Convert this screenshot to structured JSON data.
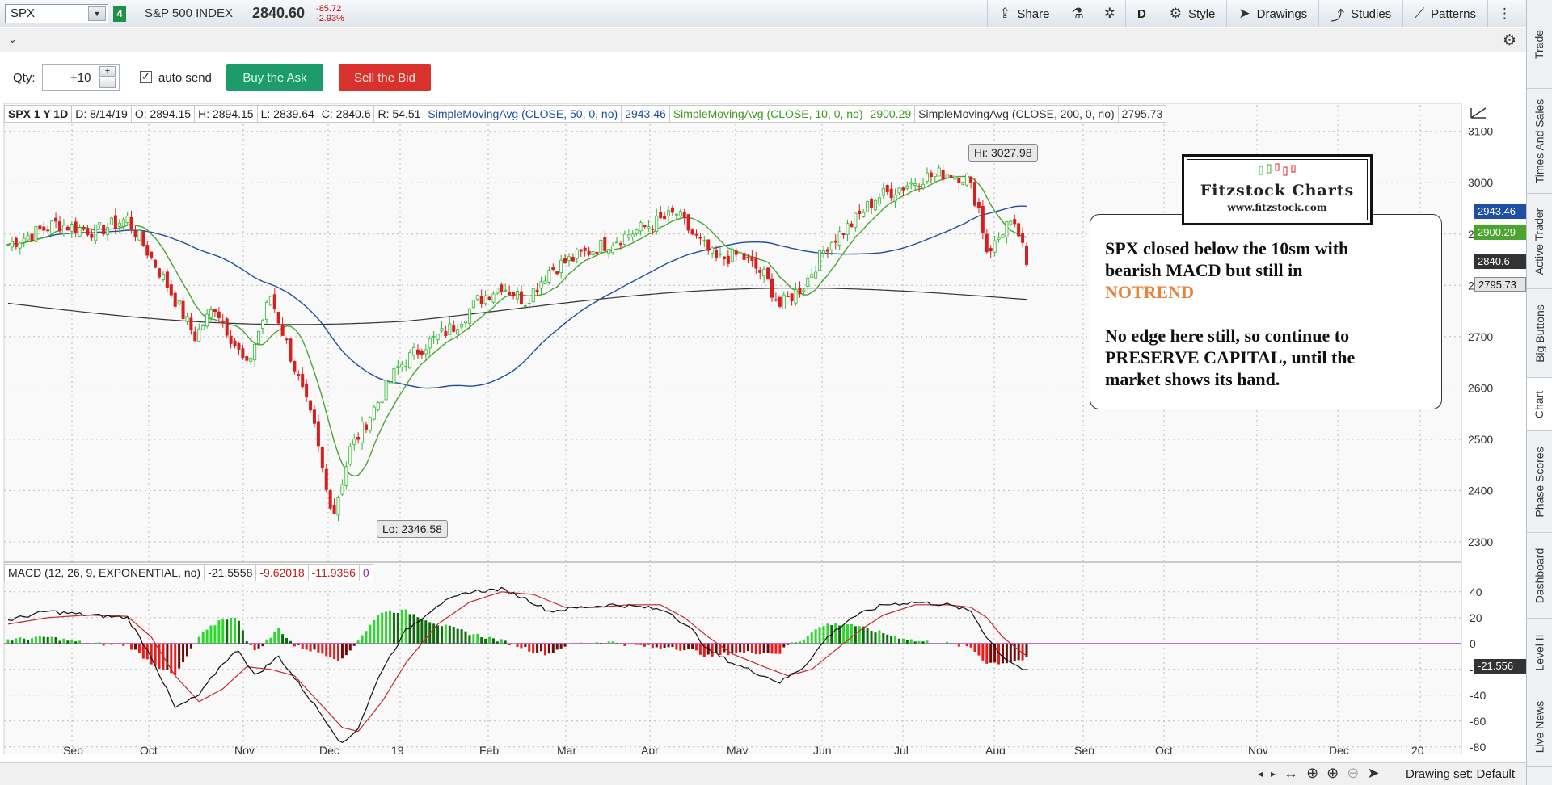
{
  "toolbar": {
    "symbol": "SPX",
    "link_badge": "4",
    "description": "S&P 500 INDEX",
    "last": "2840.60",
    "net_change": "-85.72",
    "pct_change": "-2.93%",
    "share": "Share",
    "aggregation": "D",
    "style": "Style",
    "drawings": "Drawings",
    "studies": "Studies",
    "patterns": "Patterns"
  },
  "trade": {
    "qty_label": "Qty:",
    "qty_value": "+10",
    "auto_send": "auto send",
    "buy": "Buy the Ask",
    "sell": "Sell the Bid"
  },
  "price_header": {
    "symbol": "SPX 1 Y 1D",
    "date": "D: 8/14/19",
    "open": "O: 2894.15",
    "high": "H: 2894.15",
    "low": "L: 2839.64",
    "close": "C: 2840.6",
    "range": "R: 54.51",
    "sma50_label": "SimpleMovingAvg (CLOSE, 50, 0, no)",
    "sma50_value": "2943.46",
    "sma10_label": "SimpleMovingAvg (CLOSE, 10, 0, no)",
    "sma10_value": "2900.29",
    "sma200_label": "SimpleMovingAvg (CLOSE, 200, 0, no)",
    "sma200_value": "2795.73"
  },
  "macd_header": {
    "label": "MACD (12, 26, 9, EXPONENTIAL, no)",
    "value": "-21.5558",
    "avg": "-9.62018",
    "diff": "-11.9356",
    "zero": "0"
  },
  "hi_label": "Hi: 3027.98",
  "lo_label": "Lo: 2346.58",
  "axis_badges": {
    "sma50": "2943.46",
    "sma10": "2900.29",
    "last": "2840.6",
    "sma200": "2795.73",
    "macd": "-21.556"
  },
  "price_axis": [
    "3100",
    "3000",
    "2900",
    "2800",
    "2700",
    "2600",
    "2500",
    "2400",
    "2300"
  ],
  "macd_axis": [
    "40",
    "20",
    "0",
    "-20",
    "-40",
    "-60",
    "-80"
  ],
  "time_axis": [
    "Sep",
    "Oct",
    "Nov",
    "Dec",
    "19",
    "Feb",
    "Mar",
    "Apr",
    "May",
    "Jun",
    "Jul",
    "Aug",
    "Sep",
    "Oct",
    "Nov",
    "Dec",
    "20"
  ],
  "annotation": {
    "brand": "Fitzstock Charts",
    "url": "www.fitzstock.com",
    "line1": "SPX closed below the 10sm with",
    "line2": "bearish MACD but still in",
    "line3": "NOTREND",
    "line4": "No edge here still, so continue to",
    "line5": "PRESERVE CAPITAL, until the",
    "line6": "market shows its hand."
  },
  "side_tabs": [
    "Trade",
    "Times And Sales",
    "Active Trader",
    "Big Buttons",
    "Chart",
    "Phase Scores",
    "Dashboard",
    "Level II",
    "Live News"
  ],
  "bottom": {
    "drawing_set": "Drawing set: Default"
  },
  "colors": {
    "up": "#2fb82f",
    "down": "#d81e1e",
    "sma50": "#1f4fa3",
    "sma10": "#4aa52e",
    "sma200": "#333333",
    "macd_line": "#111111",
    "macd_avg": "#c0282e",
    "zero_line": "#b040d0"
  },
  "chart_data": {
    "type": "candlestick",
    "price_ylim": [
      2270,
      3120
    ],
    "macd_ylim": [
      -82,
      48
    ],
    "anchors_close": [
      [
        0,
        2880
      ],
      [
        12,
        2920
      ],
      [
        22,
        2905
      ],
      [
        30,
        2930
      ],
      [
        34,
        2880
      ],
      [
        40,
        2800
      ],
      [
        47,
        2700
      ],
      [
        52,
        2760
      ],
      [
        60,
        2640
      ],
      [
        66,
        2780
      ],
      [
        72,
        2640
      ],
      [
        77,
        2520
      ],
      [
        80,
        2400
      ],
      [
        82,
        2360
      ],
      [
        86,
        2480
      ],
      [
        92,
        2560
      ],
      [
        98,
        2640
      ],
      [
        104,
        2680
      ],
      [
        112,
        2720
      ],
      [
        118,
        2770
      ],
      [
        124,
        2800
      ],
      [
        130,
        2770
      ],
      [
        136,
        2830
      ],
      [
        144,
        2860
      ],
      [
        150,
        2880
      ],
      [
        156,
        2900
      ],
      [
        162,
        2920
      ],
      [
        168,
        2940
      ],
      [
        172,
        2900
      ],
      [
        178,
        2850
      ],
      [
        184,
        2860
      ],
      [
        190,
        2820
      ],
      [
        194,
        2760
      ],
      [
        200,
        2800
      ],
      [
        206,
        2880
      ],
      [
        212,
        2920
      ],
      [
        218,
        2970
      ],
      [
        224,
        2990
      ],
      [
        230,
        3010
      ],
      [
        236,
        3020
      ],
      [
        241,
        3010
      ],
      [
        244,
        2950
      ],
      [
        246,
        2870
      ],
      [
        248,
        2880
      ],
      [
        251,
        2920
      ],
      [
        254,
        2900
      ],
      [
        256,
        2840
      ]
    ],
    "macd_anchors": [
      [
        0,
        18
      ],
      [
        10,
        25
      ],
      [
        20,
        22
      ],
      [
        30,
        20
      ],
      [
        36,
        -10
      ],
      [
        42,
        -50
      ],
      [
        48,
        -40
      ],
      [
        54,
        -15
      ],
      [
        58,
        -5
      ],
      [
        62,
        -25
      ],
      [
        68,
        -10
      ],
      [
        74,
        -35
      ],
      [
        80,
        -60
      ],
      [
        84,
        -78
      ],
      [
        88,
        -65
      ],
      [
        94,
        -20
      ],
      [
        100,
        10
      ],
      [
        108,
        30
      ],
      [
        116,
        40
      ],
      [
        124,
        42
      ],
      [
        130,
        35
      ],
      [
        136,
        25
      ],
      [
        144,
        28
      ],
      [
        152,
        30
      ],
      [
        160,
        28
      ],
      [
        166,
        25
      ],
      [
        172,
        10
      ],
      [
        176,
        -5
      ],
      [
        182,
        -15
      ],
      [
        190,
        -25
      ],
      [
        194,
        -30
      ],
      [
        200,
        -18
      ],
      [
        206,
        5
      ],
      [
        212,
        20
      ],
      [
        220,
        30
      ],
      [
        228,
        32
      ],
      [
        236,
        30
      ],
      [
        242,
        25
      ],
      [
        246,
        5
      ],
      [
        250,
        -10
      ],
      [
        254,
        -18
      ],
      [
        256,
        -21.5
      ]
    ],
    "macd_avg_anchors": [
      [
        0,
        15
      ],
      [
        10,
        20
      ],
      [
        20,
        22
      ],
      [
        30,
        21
      ],
      [
        36,
        5
      ],
      [
        42,
        -25
      ],
      [
        48,
        -45
      ],
      [
        54,
        -35
      ],
      [
        60,
        -18
      ],
      [
        66,
        -20
      ],
      [
        72,
        -25
      ],
      [
        78,
        -45
      ],
      [
        84,
        -65
      ],
      [
        88,
        -68
      ],
      [
        94,
        -45
      ],
      [
        100,
        -15
      ],
      [
        108,
        15
      ],
      [
        116,
        32
      ],
      [
        124,
        40
      ],
      [
        132,
        38
      ],
      [
        140,
        28
      ],
      [
        148,
        28
      ],
      [
        156,
        30
      ],
      [
        164,
        30
      ],
      [
        170,
        20
      ],
      [
        176,
        5
      ],
      [
        182,
        -8
      ],
      [
        190,
        -18
      ],
      [
        196,
        -25
      ],
      [
        202,
        -20
      ],
      [
        208,
        -5
      ],
      [
        214,
        10
      ],
      [
        220,
        22
      ],
      [
        228,
        30
      ],
      [
        236,
        30
      ],
      [
        242,
        28
      ],
      [
        246,
        20
      ],
      [
        250,
        5
      ],
      [
        254,
        -5
      ],
      [
        256,
        -9.6
      ]
    ],
    "bars": 257,
    "last_close": 2840.6,
    "hi": 3027.98,
    "lo": 2346.58
  }
}
